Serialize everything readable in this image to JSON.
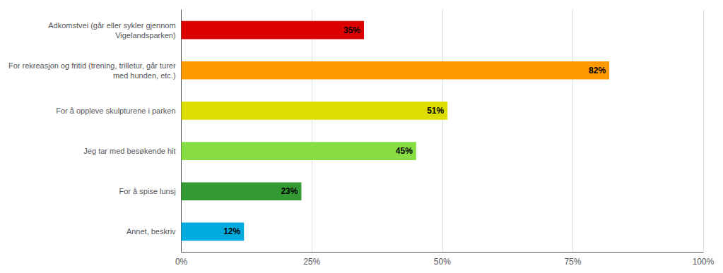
{
  "chart_data": {
    "type": "bar",
    "orientation": "horizontal",
    "categories": [
      "Adkomstvei (går eller sykler gjennom\nVigelandsparken)",
      "For rekreasjon og fritid (trening, trilletur, går turer\nmed hunden, etc.)",
      "For å oppleve skulpturene i parken",
      "Jeg tar med besøkende hit",
      "For å spise lunsj",
      "Annet, beskriv"
    ],
    "values": [
      35,
      82,
      51,
      45,
      23,
      12
    ],
    "value_labels": [
      "35%",
      "82%",
      "51%",
      "45%",
      "23%",
      "12%"
    ],
    "data_labels": true,
    "colors": [
      "#dd0000",
      "#ff9900",
      "#dddd00",
      "#88dd44",
      "#339933",
      "#00aadd"
    ],
    "xlim": [
      0,
      100
    ],
    "xticks": [
      {
        "value": 0,
        "label": "0%"
      },
      {
        "value": 25,
        "label": "25%"
      },
      {
        "value": 50,
        "label": "50%"
      },
      {
        "value": 75,
        "label": "75%"
      },
      {
        "value": 100,
        "label": "100%"
      }
    ],
    "grid": true
  }
}
